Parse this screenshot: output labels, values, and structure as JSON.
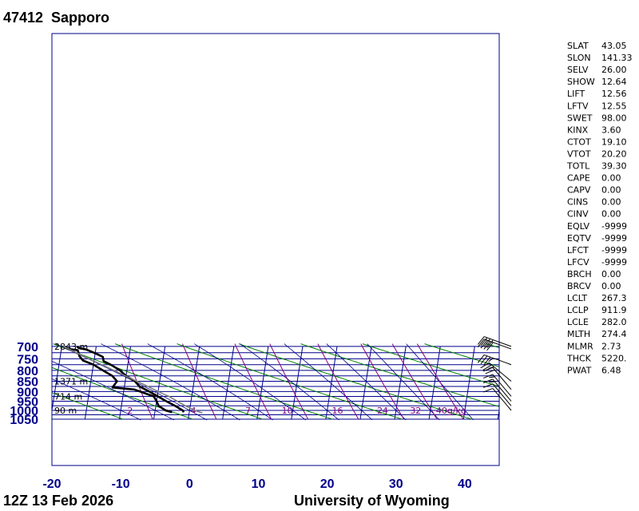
{
  "header": {
    "station": "47412",
    "city": "Sapporo"
  },
  "footer": {
    "time": "12Z 13 Feb 2026",
    "source": "University of Wyoming"
  },
  "colors": {
    "grid": "#00008b",
    "dry_adiabat": "#008000",
    "moist_adiabat": "#00008b",
    "mixing_ratio": "#800080",
    "sounding": "#000000",
    "parcel": "#808080"
  },
  "chart_data": {
    "type": "line",
    "subtype": "skew-t log-p",
    "y_scale": "log",
    "y_inverted": true,
    "ylim": [
      1050,
      700
    ],
    "xlim": [
      -20,
      45
    ],
    "pressure_ticks": [
      700,
      750,
      800,
      850,
      900,
      950,
      1000,
      1050
    ],
    "temp_ticks": [
      -20,
      -10,
      0,
      10,
      20,
      30,
      40
    ],
    "height_labels": [
      {
        "p": 700,
        "text": "2843 m"
      },
      {
        "p": 850,
        "text": "1371 m"
      },
      {
        "p": 925,
        "text": "714 m"
      },
      {
        "p": 1000,
        "text": "90 m"
      }
    ],
    "mixing_ratio_labels": [
      {
        "w": 2,
        "text": "2"
      },
      {
        "w": 4,
        "text": "4"
      },
      {
        "w": 7,
        "text": "7"
      },
      {
        "w": 10,
        "text": "10"
      },
      {
        "w": 16,
        "text": "16"
      },
      {
        "w": 24,
        "text": "24"
      },
      {
        "w": 32,
        "text": "32"
      },
      {
        "w": 40,
        "text": "40g/kg"
      }
    ],
    "series": [
      {
        "kind": "temperature",
        "points": [
          [
            1010,
            -0.8
          ],
          [
            1000,
            -1.0
          ],
          [
            975,
            -2.2
          ],
          [
            950,
            -3.6
          ],
          [
            925,
            -4.9
          ],
          [
            900,
            -6.3
          ],
          [
            875,
            -7.8
          ],
          [
            850,
            -8.6
          ],
          [
            825,
            -10.0
          ],
          [
            800,
            -11.0
          ],
          [
            775,
            -12.5
          ],
          [
            760,
            -13.6
          ],
          [
            742,
            -13.8
          ],
          [
            727,
            -15.0
          ],
          [
            712,
            -16.4
          ],
          [
            706,
            -17.5
          ],
          [
            700,
            -17.8
          ]
        ]
      },
      {
        "kind": "dewpoint",
        "points": [
          [
            1010,
            -2.5
          ],
          [
            1000,
            -3.5
          ],
          [
            975,
            -4.6
          ],
          [
            950,
            -5.0
          ],
          [
            925,
            -5.5
          ],
          [
            890,
            -8.5
          ],
          [
            880,
            -11.7
          ],
          [
            850,
            -11.2
          ],
          [
            825,
            -12.0
          ],
          [
            800,
            -13.5
          ],
          [
            775,
            -15.0
          ],
          [
            757,
            -16.6
          ],
          [
            740,
            -17.2
          ],
          [
            715,
            -17.6
          ],
          [
            710,
            -19.0
          ],
          [
            700,
            -19.5
          ]
        ]
      },
      {
        "kind": "parcel",
        "points": [
          [
            1015,
            1.9
          ],
          [
            1000,
            0.8
          ],
          [
            975,
            -0.7
          ],
          [
            950,
            -2.0
          ],
          [
            925,
            -3.3
          ],
          [
            912,
            -4.2
          ],
          [
            900,
            -5.0
          ],
          [
            875,
            -6.6
          ],
          [
            850,
            -8.3
          ],
          [
            825,
            -10.1
          ],
          [
            800,
            -11.9
          ],
          [
            775,
            -13.8
          ],
          [
            750,
            -15.8
          ],
          [
            725,
            -17.7
          ],
          [
            700,
            -19.8
          ]
        ]
      }
    ],
    "wind_barbs": [
      {
        "p": 1000,
        "dir": 320,
        "spd": 10
      },
      {
        "p": 975,
        "dir": 320,
        "spd": 10
      },
      {
        "p": 950,
        "dir": 320,
        "spd": 15
      },
      {
        "p": 925,
        "dir": 320,
        "spd": 15
      },
      {
        "p": 890,
        "dir": 320,
        "spd": 20
      },
      {
        "p": 850,
        "dir": 310,
        "spd": 25
      },
      {
        "p": 775,
        "dir": 290,
        "spd": 35
      },
      {
        "p": 710,
        "dir": 290,
        "spd": 40
      },
      {
        "p": 700,
        "dir": 290,
        "spd": 40
      }
    ]
  },
  "indices": [
    {
      "name": "SLAT",
      "value": "43.05"
    },
    {
      "name": "SLON",
      "value": "141.33"
    },
    {
      "name": "SELV",
      "value": "26.00"
    },
    {
      "name": "SHOW",
      "value": "12.64"
    },
    {
      "name": "LIFT",
      "value": "12.56"
    },
    {
      "name": "LFTV",
      "value": "12.55"
    },
    {
      "name": "SWET",
      "value": "98.00"
    },
    {
      "name": "KINX",
      "value": "3.60"
    },
    {
      "name": "CTOT",
      "value": "19.10"
    },
    {
      "name": "VTOT",
      "value": "20.20"
    },
    {
      "name": "TOTL",
      "value": "39.30"
    },
    {
      "name": "CAPE",
      "value": "0.00"
    },
    {
      "name": "CAPV",
      "value": "0.00"
    },
    {
      "name": "CINS",
      "value": "0.00"
    },
    {
      "name": "CINV",
      "value": "0.00"
    },
    {
      "name": "EQLV",
      "value": "-9999"
    },
    {
      "name": "EQTV",
      "value": "-9999"
    },
    {
      "name": "LFCT",
      "value": "-9999"
    },
    {
      "name": "LFCV",
      "value": "-9999"
    },
    {
      "name": "BRCH",
      "value": "0.00"
    },
    {
      "name": "BRCV",
      "value": "0.00"
    },
    {
      "name": "LCLT",
      "value": "267.3"
    },
    {
      "name": "LCLP",
      "value": "911.9"
    },
    {
      "name": "LCLE",
      "value": "282.0"
    },
    {
      "name": "MLTH",
      "value": "274.4"
    },
    {
      "name": "MLMR",
      "value": "2.73"
    },
    {
      "name": "THCK",
      "value": "5220."
    },
    {
      "name": "PWAT",
      "value": "6.48"
    }
  ]
}
